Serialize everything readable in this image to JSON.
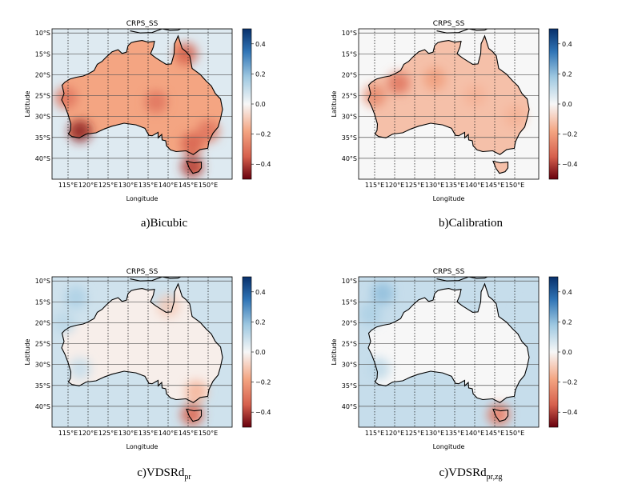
{
  "colorbar": {
    "min": -0.5,
    "max": 0.5,
    "ticks": [
      "0.4",
      "0.2",
      "0.0",
      "−0.2",
      "−0.4"
    ],
    "tick_values": [
      0.4,
      0.2,
      0.0,
      -0.2,
      -0.4
    ],
    "colors": {
      "high": "#08306b",
      "mid": "#f7f7f7",
      "low": "#67000d"
    }
  },
  "chart_data": [
    {
      "type": "heatmap",
      "title": "CRPS_SS",
      "xlabel": "Longitude",
      "ylabel": "Latitude",
      "xlim": [
        111,
        156
      ],
      "ylim": [
        -45,
        -9
      ],
      "x_ticks": [
        "115°E",
        "120°E",
        "125°E",
        "130°E",
        "135°E",
        "140°E",
        "145°E",
        "150°E"
      ],
      "y_ticks": [
        "10°S",
        "15°S",
        "20°S",
        "25°S",
        "30°S",
        "35°S",
        "40°S"
      ],
      "caption": "a)Bicubic",
      "land_mean": -0.18,
      "ocean_mean": 0.05,
      "features": [
        {
          "lon": 118,
          "lat": -33.5,
          "value": -0.45
        },
        {
          "lon": 146,
          "lat": -36.5,
          "value": -0.35
        },
        {
          "lon": 146,
          "lat": -42,
          "value": -0.4
        },
        {
          "lon": 150,
          "lat": -33.5,
          "value": -0.3
        },
        {
          "lon": 144.5,
          "lat": -15,
          "value": -0.35
        },
        {
          "lon": 137,
          "lat": -26.5,
          "value": -0.3
        },
        {
          "lon": 114.5,
          "lat": -25.5,
          "value": -0.3
        }
      ]
    },
    {
      "type": "heatmap",
      "title": "CRPS_SS",
      "xlabel": "Longitude",
      "ylabel": "Latitude",
      "xlim": [
        111,
        156
      ],
      "ylim": [
        -45,
        -9
      ],
      "x_ticks": [
        "115°E",
        "120°E",
        "125°E",
        "130°E",
        "135°E",
        "140°E",
        "145°E",
        "150°E"
      ],
      "y_ticks": [
        "10°S",
        "15°S",
        "20°S",
        "25°S",
        "30°S",
        "35°S",
        "40°S"
      ],
      "caption": "b)Calibration",
      "land_mean": -0.12,
      "ocean_mean": 0.0,
      "features": [
        {
          "lon": 121,
          "lat": -22,
          "value": -0.3
        },
        {
          "lon": 130,
          "lat": -21,
          "value": -0.2
        },
        {
          "lon": 115,
          "lat": -25,
          "value": -0.25
        },
        {
          "lon": 140,
          "lat": -25,
          "value": -0.15
        },
        {
          "lon": 150,
          "lat": -30,
          "value": -0.15
        }
      ]
    },
    {
      "type": "heatmap",
      "title": "CRPS_SS",
      "xlabel": "Longitude",
      "ylabel": "Latitude",
      "xlim": [
        111,
        156
      ],
      "ylim": [
        -45,
        -9
      ],
      "x_ticks": [
        "115°E",
        "120°E",
        "125°E",
        "130°E",
        "135°E",
        "140°E",
        "145°E",
        "150°E"
      ],
      "y_ticks": [
        "10°S",
        "15°S",
        "20°S",
        "25°S",
        "30°S",
        "35°S",
        "40°S"
      ],
      "caption_main": "c)VDSRd",
      "caption_sub": "pr",
      "land_mean": -0.02,
      "ocean_mean": 0.08,
      "features": [
        {
          "lon": 146,
          "lat": -42,
          "value": -0.35
        },
        {
          "lon": 147,
          "lat": -36.5,
          "value": -0.15
        },
        {
          "lon": 117,
          "lat": -14,
          "value": 0.15
        },
        {
          "lon": 114,
          "lat": -20,
          "value": 0.12
        },
        {
          "lon": 118,
          "lat": -31,
          "value": 0.1
        },
        {
          "lon": 140,
          "lat": -16,
          "value": -0.1
        }
      ]
    },
    {
      "type": "heatmap",
      "title": "CRPS_SS",
      "xlabel": "Longitude",
      "ylabel": "Latitude",
      "xlim": [
        111,
        156
      ],
      "ylim": [
        -45,
        -9
      ],
      "x_ticks": [
        "115°E",
        "120°E",
        "125°E",
        "130°E",
        "135°E",
        "140°E",
        "145°E",
        "150°E"
      ],
      "y_ticks": [
        "10°S",
        "15°S",
        "20°S",
        "25°S",
        "30°S",
        "35°S",
        "40°S"
      ],
      "caption_main": "c)VDSRd",
      "caption_sub": "pr,zg",
      "land_mean": 0.0,
      "ocean_mean": 0.1,
      "features": [
        {
          "lon": 146,
          "lat": -42,
          "value": -0.3
        },
        {
          "lon": 117,
          "lat": -13,
          "value": 0.2
        },
        {
          "lon": 114,
          "lat": -18,
          "value": 0.15
        },
        {
          "lon": 116,
          "lat": -31,
          "value": 0.12
        },
        {
          "lon": 153,
          "lat": -18,
          "value": 0.1
        }
      ]
    }
  ]
}
